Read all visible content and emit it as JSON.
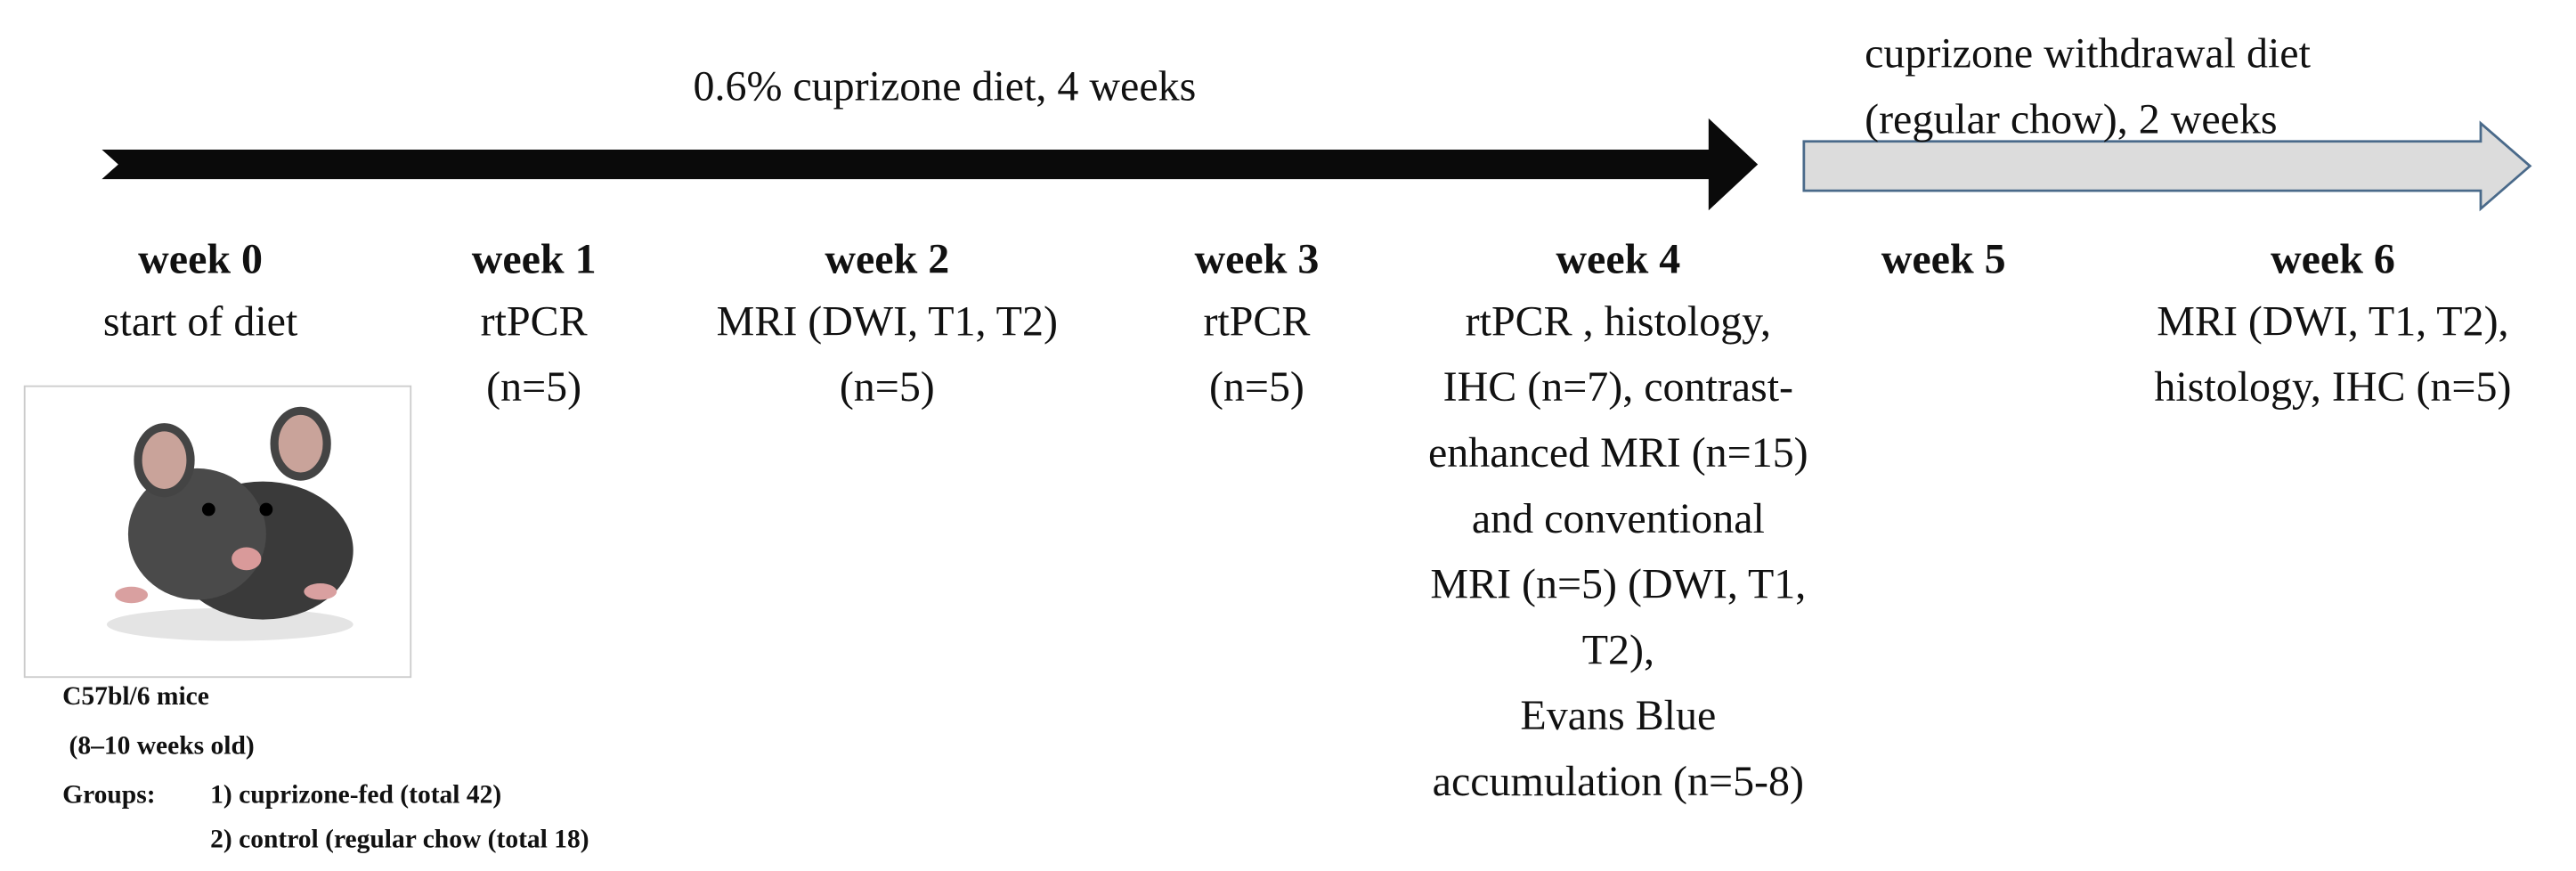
{
  "arrows": [
    {
      "label": [
        "0.6% cuprizone diet, 4 weeks"
      ]
    },
    {
      "label": [
        "cuprizone withdrawal diet",
        "(regular chow), 2 weeks"
      ]
    }
  ],
  "weeks": [
    {
      "title": "week 0",
      "lines": [
        "start of diet"
      ]
    },
    {
      "title": "week 1",
      "lines": [
        "rtPCR",
        "(n=5)"
      ]
    },
    {
      "title": "week 2",
      "lines": [
        "MRI (DWI, T1, T2)",
        "(n=5)"
      ]
    },
    {
      "title": "week 3",
      "lines": [
        "rtPCR",
        "(n=5)"
      ]
    },
    {
      "title": "week 4",
      "lines": [
        "rtPCR , histology,",
        "IHC (n=7), contrast-",
        "enhanced MRI (n=15)",
        "and conventional",
        "MRI (n=5) (DWI, T1,",
        "T2),",
        "Evans Blue",
        "accumulation (n=5-8)"
      ]
    },
    {
      "title": "week 5",
      "lines": []
    },
    {
      "title": "week 6",
      "lines": [
        "MRI (DWI, T1, T2),",
        "histology, IHC (n=5)"
      ]
    }
  ],
  "mice": {
    "strain": "C57bl/6 mice",
    "age": "(8–10 weeks old)",
    "groups_label": "Groups:",
    "groups": [
      "1) cuprizone-fed (total 42)",
      "2) control (regular chow (total 18)"
    ]
  }
}
